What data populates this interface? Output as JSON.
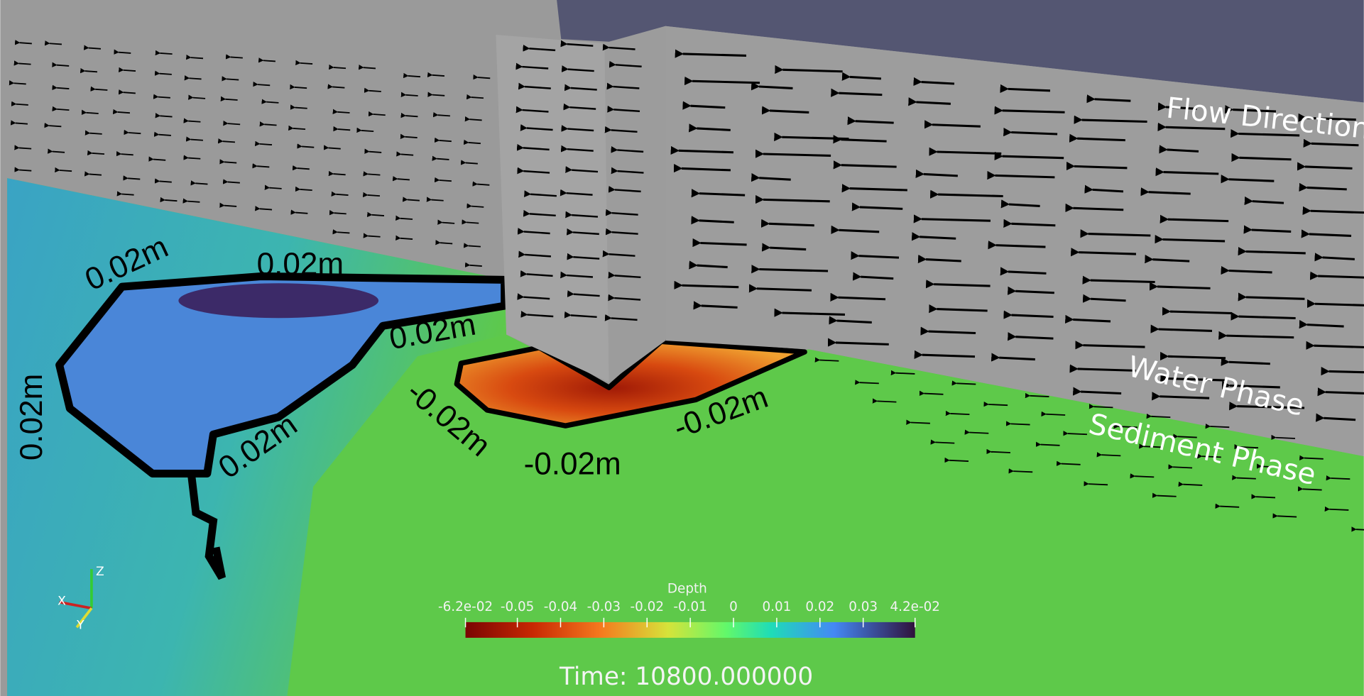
{
  "annotations": {
    "flow": "Flow Direction",
    "water": "Water Phase",
    "sediment": "Sediment Phase"
  },
  "contour_labels": [
    "0.02m",
    "0.02m",
    "0.02m",
    "0.02m",
    "0.02m",
    "-0.02m",
    "-0.02m",
    "-0.02m"
  ],
  "colorbar": {
    "title": "Depth",
    "range": [
      -0.062,
      0.042
    ],
    "ticks": [
      {
        "value": -0.062,
        "label": "-6.2e-02"
      },
      -0.05,
      -0.04,
      -0.03,
      -0.02,
      -0.01,
      0,
      0.01,
      0.02,
      0.03,
      {
        "value": 0.042,
        "label": "4.2e-02"
      }
    ]
  },
  "time_label": "Time: 10800.000000",
  "axes": {
    "x": "X",
    "y": "Y",
    "z": "Z"
  }
}
